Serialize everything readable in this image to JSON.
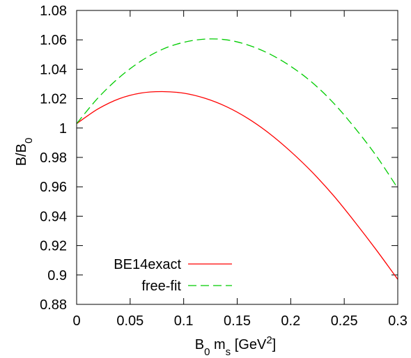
{
  "chart_data": {
    "type": "line",
    "xlabel": {
      "main": "B",
      "sub1": "0",
      "mid": " m",
      "sub2": "s",
      "unit_open": " [GeV",
      "sup": "2",
      "unit_close": "]"
    },
    "ylabel": {
      "main": "B/B",
      "sub": "0"
    },
    "xlim": [
      0,
      0.3
    ],
    "ylim": [
      0.88,
      1.08
    ],
    "x_ticks": [
      0,
      0.05,
      0.1,
      0.15,
      0.2,
      0.25,
      0.3
    ],
    "x_tick_labels": [
      "0",
      "0.05",
      "0.1",
      "0.15",
      "0.2",
      "0.25",
      "0.3"
    ],
    "y_ticks": [
      0.88,
      0.9,
      0.92,
      0.94,
      0.96,
      0.98,
      1.0,
      1.02,
      1.04,
      1.06,
      1.08
    ],
    "y_tick_labels": [
      "0.88",
      "0.9",
      "0.92",
      "0.94",
      "0.96",
      "0.98",
      "1",
      "1.02",
      "1.04",
      "1.06",
      "1.08"
    ],
    "grid": false,
    "legend_position": "bottom-left",
    "series": [
      {
        "name": "BE14exact",
        "color": "#ff0000",
        "dash": "solid",
        "x": [
          0,
          0.02,
          0.04,
          0.06,
          0.08,
          0.1,
          0.12,
          0.14,
          0.16,
          0.18,
          0.2,
          0.22,
          0.24,
          0.26,
          0.28,
          0.3
        ],
        "y": [
          1.003,
          1.013,
          1.02,
          1.0238,
          1.0248,
          1.0237,
          1.0202,
          1.0145,
          1.0065,
          0.9963,
          0.984,
          0.97,
          0.954,
          0.936,
          0.917,
          0.897
        ]
      },
      {
        "name": "free-fit",
        "color": "#00cc00",
        "dash": "dashed",
        "x": [
          0,
          0.02,
          0.04,
          0.06,
          0.08,
          0.1,
          0.12,
          0.14,
          0.16,
          0.18,
          0.2,
          0.22,
          0.24,
          0.26,
          0.28,
          0.3
        ],
        "y": [
          1.003,
          1.0205,
          1.0345,
          1.0455,
          1.0535,
          1.0583,
          1.0605,
          1.06,
          1.0565,
          1.0505,
          1.042,
          1.031,
          1.017,
          1.0,
          0.981,
          0.959
        ]
      }
    ]
  }
}
